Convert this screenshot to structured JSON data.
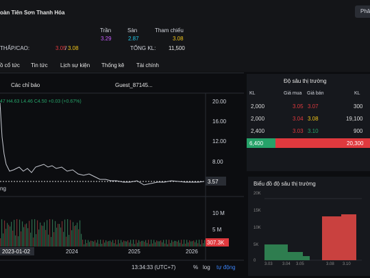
{
  "header": {
    "company": "oàn Tiên Sơn Thanh Hóa",
    "button": "Phâ",
    "prices": [
      {
        "label": "Trần",
        "value": "3.29"
      },
      {
        "label": "Sàn",
        "value": "2.87"
      },
      {
        "label": "Tham chiếu",
        "value": "3.08"
      }
    ],
    "low_high_label": "THẤP/CAO:",
    "low": "3.05",
    "sep": "/",
    "high": "3.08",
    "volume_label": "TỔNG KL:",
    "volume": "11,500"
  },
  "tabs": [
    "ồ cổ tức",
    "Tin tức",
    "Lịch sự kiện",
    "Thống kê",
    "Tài chính"
  ],
  "chart": {
    "indicators": "Các chỉ báo",
    "layout": "Guest_87145...",
    "ohlc": "47 H4.63 L4.46 C4.50 +0.03 (+0.67%)",
    "price_ticks": [
      "20.00",
      "16.00",
      "12.00",
      "8.00"
    ],
    "last_price": "3.57",
    "volume_ticks": [
      "10 M",
      "5 M"
    ],
    "last_volume": "307.3K",
    "dates": [
      "2023-01-02",
      "2024",
      "2025",
      "2026"
    ],
    "series_label": "ng",
    "time": "13:34:33 (UTC+7)",
    "percent": "%",
    "log": "log",
    "auto": "tự động"
  },
  "depth": {
    "title": "Độ sâu thị trường",
    "headers": [
      "KL",
      "Giá mua",
      "Giá bán",
      "KL"
    ],
    "rows": [
      [
        "2,000",
        "3.05",
        "3.07",
        "300"
      ],
      [
        "2,000",
        "3.04",
        "3.08",
        "19,100"
      ],
      [
        "2,400",
        "3.03",
        "3.10",
        "900"
      ]
    ],
    "total_buy": "6,400",
    "total_sell": "20,300",
    "chart_title": "Biểu đồ độ sâu thị trường",
    "y_labels": [
      "20K",
      "15K",
      "10K",
      "5K",
      "0"
    ],
    "x_labels": [
      "3.03",
      "3.04",
      "3.05",
      "3.08",
      "3.10"
    ]
  }
}
